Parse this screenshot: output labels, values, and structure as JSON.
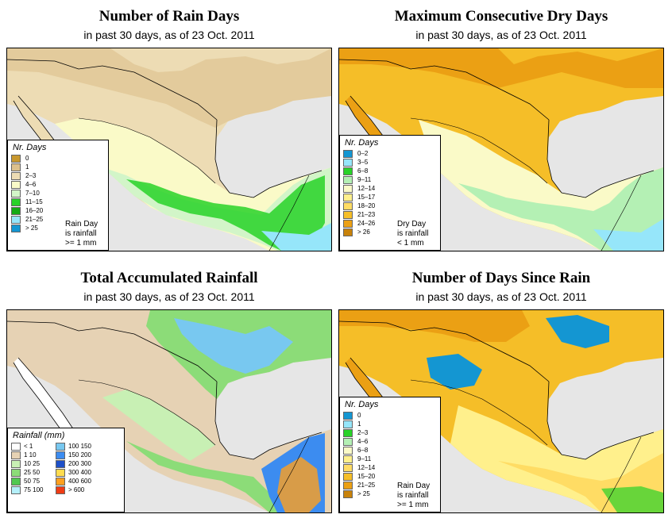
{
  "panels": [
    {
      "title": "Number of Rain Days",
      "subtitle": "in past 30 days, as of  23 Oct. 2011",
      "legend": {
        "title": "Nr. Days",
        "items": [
          {
            "label": "0",
            "color": "#c8982e"
          },
          {
            "label": "1",
            "color": "#dcc08c"
          },
          {
            "label": "2–3",
            "color": "#eddcb4"
          },
          {
            "label": "4–6",
            "color": "#fafac8"
          },
          {
            "label": "7–10",
            "color": "#d2f5c8"
          },
          {
            "label": "11–15",
            "color": "#28d228"
          },
          {
            "label": "16–20",
            "color": "#14aa14"
          },
          {
            "label": "21–25",
            "color": "#96e6fa"
          },
          {
            "label": "> 25",
            "color": "#1496d2"
          }
        ],
        "note": [
          "Rain Day",
          "is rainfall",
          ">= 1 mm"
        ]
      }
    },
    {
      "title": "Maximum Consecutive Dry Days",
      "subtitle": "in past 30 days, as of  23 Oct. 2011",
      "legend": {
        "title": "Nr. Days",
        "items": [
          {
            "label": "0–2",
            "color": "#1496d2"
          },
          {
            "label": "3–5",
            "color": "#96e6fa"
          },
          {
            "label": "6–8",
            "color": "#28d228"
          },
          {
            "label": "9–11",
            "color": "#b4f0b4"
          },
          {
            "label": "12–14",
            "color": "#fafac8"
          },
          {
            "label": "15–17",
            "color": "#fff08c"
          },
          {
            "label": "18–20",
            "color": "#ffdc64"
          },
          {
            "label": "21–23",
            "color": "#f5be28"
          },
          {
            "label": "24–26",
            "color": "#eba014"
          },
          {
            "label": "> 26",
            "color": "#c8820a"
          }
        ],
        "note": [
          "Dry Day",
          "is rainfall",
          "< 1 mm"
        ]
      }
    },
    {
      "title": "Total Accumulated Rainfall",
      "subtitle": "in past 30 days, as of  23 Oct. 2011",
      "legend": {
        "title": "Rainfall (mm)",
        "items": [
          {
            "label": "< 1",
            "color": "#ffffff"
          },
          {
            "label": "1   10",
            "color": "#e6d2b4"
          },
          {
            "label": "10   25",
            "color": "#c8f0b4"
          },
          {
            "label": "25   50",
            "color": "#8cdc78"
          },
          {
            "label": "50   75",
            "color": "#50c850"
          },
          {
            "label": "75   100",
            "color": "#b4f0fa"
          },
          {
            "label": "100   150",
            "color": "#78c8f0"
          },
          {
            "label": "150   200",
            "color": "#3c8cf0"
          },
          {
            "label": "200   300",
            "color": "#1e50c8"
          },
          {
            "label": "300   400",
            "color": "#ffdc50"
          },
          {
            "label": "400   600",
            "color": "#ffa01e"
          },
          {
            "label": "> 600",
            "color": "#f03c14"
          }
        ]
      }
    },
    {
      "title": "Number of Days Since Rain",
      "subtitle": "in past 30 days, as of  23 Oct. 2011",
      "legend": {
        "title": "Nr. Days",
        "items": [
          {
            "label": "0",
            "color": "#1496d2"
          },
          {
            "label": "1",
            "color": "#96e6fa"
          },
          {
            "label": "2–3",
            "color": "#28d228"
          },
          {
            "label": "4–6",
            "color": "#b4f0b4"
          },
          {
            "label": "6–8",
            "color": "#fafac8"
          },
          {
            "label": "9–11",
            "color": "#fff08c"
          },
          {
            "label": "12–14",
            "color": "#ffdc64"
          },
          {
            "label": "15–20",
            "color": "#f5be28"
          },
          {
            "label": "21–25",
            "color": "#eba014"
          },
          {
            "label": "> 25",
            "color": "#c8820a"
          }
        ],
        "note": [
          "Rain Day",
          "is rainfall",
          ">= 1 mm"
        ]
      }
    }
  ]
}
